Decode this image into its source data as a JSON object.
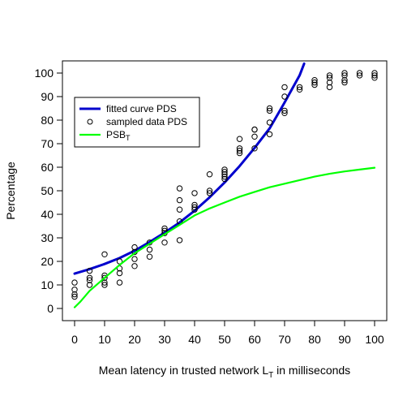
{
  "chart_data": {
    "type": "scatter",
    "xlabel": "Mean latency in trusted network",
    "xlabel_symbol": "L",
    "xlabel_subscript": "T",
    "xlabel_suffix": "in milliseconds",
    "ylabel": "Percentage",
    "xlim": [
      0,
      100
    ],
    "ylim": [
      0,
      100
    ],
    "xticks": [
      0,
      10,
      20,
      30,
      40,
      50,
      60,
      70,
      80,
      90,
      100
    ],
    "yticks": [
      0,
      10,
      20,
      30,
      40,
      50,
      60,
      70,
      80,
      90,
      100
    ],
    "grid": false,
    "legend_position": "top-left",
    "series": [
      {
        "name": "fitted curve PDS",
        "kind": "line",
        "color": "#0000CD",
        "x": [
          0,
          5,
          10,
          15,
          20,
          25,
          30,
          35,
          40,
          45,
          50,
          55,
          60,
          65,
          70,
          75,
          76.5
        ],
        "y": [
          14.8,
          16.7,
          18.9,
          21.4,
          24.5,
          28.2,
          32.2,
          36.5,
          41.5,
          47.2,
          53.5,
          60.5,
          68.2,
          76.5,
          87.5,
          99,
          104
        ]
      },
      {
        "name": "sampled data PDS",
        "kind": "points",
        "color": "#000000",
        "x": [
          0,
          0,
          0,
          0,
          5,
          5,
          5,
          5,
          10,
          10,
          10,
          10,
          10,
          15,
          15,
          15,
          15,
          20,
          20,
          20,
          20,
          25,
          25,
          25,
          30,
          30,
          30,
          30,
          35,
          35,
          35,
          35,
          35,
          40,
          40,
          40,
          40,
          45,
          45,
          45,
          50,
          50,
          50,
          50,
          50,
          55,
          55,
          55,
          55,
          60,
          60,
          60,
          60,
          65,
          65,
          65,
          65,
          70,
          70,
          70,
          70,
          75,
          75,
          80,
          80,
          80,
          85,
          85,
          85,
          85,
          90,
          90,
          90,
          90,
          95,
          95,
          100,
          100,
          100
        ],
        "y": [
          5,
          6,
          8,
          11,
          10,
          12,
          13,
          16,
          10,
          11,
          13,
          14,
          23,
          11,
          15,
          17,
          20,
          18,
          21,
          24,
          26,
          22,
          25,
          28,
          28,
          32,
          33,
          34,
          29,
          37,
          42,
          46,
          51,
          42,
          44,
          49,
          43,
          49,
          50,
          57,
          55,
          56,
          57,
          58,
          59,
          66,
          67,
          68,
          72,
          68,
          73,
          76,
          76,
          74,
          79,
          84,
          85,
          83,
          84,
          90,
          94,
          93,
          94,
          95,
          96,
          97,
          94,
          96,
          98,
          99,
          96,
          97,
          99,
          100,
          99,
          100,
          98,
          99,
          100
        ]
      },
      {
        "name": "PSB",
        "name_subscript": "T",
        "kind": "line",
        "color": "#00FF00",
        "x": [
          0,
          2,
          5,
          10,
          15,
          20,
          25,
          30,
          35,
          40,
          45,
          50,
          55,
          60,
          65,
          70,
          75,
          80,
          85,
          90,
          95,
          100
        ],
        "y": [
          0.5,
          3,
          7.5,
          13,
          18.5,
          23.5,
          27.5,
          31.5,
          35.5,
          39.5,
          42.5,
          45,
          47.5,
          49.5,
          51.5,
          53,
          54.5,
          56,
          57.2,
          58.2,
          59,
          59.8
        ]
      }
    ]
  }
}
